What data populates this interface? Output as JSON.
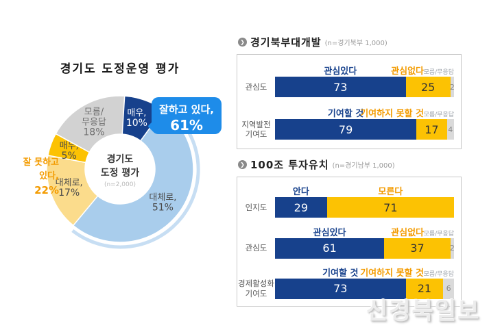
{
  "watermark": "신경북일보",
  "chart_data": [
    {
      "type": "donut",
      "title": "경기도 도정운영 평가",
      "center": {
        "line1": "경기도",
        "line2": "도정 평가",
        "note": "(n=2,000)"
      },
      "slices": [
        {
          "label_lines": [
            "매우,",
            "10%"
          ],
          "value": 10,
          "color": "#17418c",
          "text_color": "#ffffff"
        },
        {
          "label_lines": [
            "대체로,",
            "51%"
          ],
          "value": 51,
          "color": "#a9cdec",
          "text_color": "#4a4a4a",
          "ring": true
        },
        {
          "label_lines": [
            "대체로,",
            "17%"
          ],
          "value": 17,
          "color": "#fbdc8c",
          "text_color": "#4a4a4a"
        },
        {
          "label_lines": [
            "매우,",
            "5%"
          ],
          "value": 5,
          "color": "#fcc203",
          "text_color": "#4a4a4a"
        },
        {
          "label_lines": [
            "모름/",
            "무응답",
            "18%"
          ],
          "value": 18,
          "color": "#d2d2d2",
          "text_color": "#6f6f6f"
        }
      ],
      "callout_positive": {
        "line1": "잘하고 있다,",
        "line2": "61%",
        "color": "#1e8ce9"
      },
      "callout_negative": {
        "line1": "잘 못하고",
        "line2": "있다,",
        "line3": "22%",
        "color": "#f39b00"
      }
    },
    {
      "type": "stacked-bar",
      "title": "경기북부대개발",
      "note": "(n=경기북부 1,000)",
      "colors": {
        "positive": "#17418c",
        "negative": "#fcc203",
        "dontknow": "#dadada"
      },
      "rows": [
        {
          "category": "관심도",
          "pos_label": "관심있다",
          "neg_label": "관심없다",
          "dk_label": "모름/무응답",
          "values": [
            73,
            25,
            2
          ]
        },
        {
          "category": "지역발전\n기여도",
          "pos_label": "기여할 것",
          "neg_label": "기여하지 못할 것",
          "dk_label": "모름/무응답",
          "values": [
            79,
            17,
            4
          ]
        }
      ]
    },
    {
      "type": "stacked-bar",
      "title": "100조 투자유치",
      "note": "(n=경기남부 1,000)",
      "colors": {
        "positive": "#17418c",
        "negative": "#fcc203",
        "dontknow": "#dadada"
      },
      "rows": [
        {
          "category": "인지도",
          "pos_label": "안다",
          "neg_label": "모른다",
          "dk_label": "",
          "values": [
            29,
            71,
            0
          ]
        },
        {
          "category": "관심도",
          "pos_label": "관심있다",
          "neg_label": "관심없다",
          "dk_label": "모름/무응답",
          "values": [
            61,
            37,
            2
          ]
        },
        {
          "category": "경제활성화\n기여도",
          "pos_label": "기여할 것",
          "neg_label": "기여하지 못할 것",
          "dk_label": "모름/무응답",
          "values": [
            73,
            21,
            6
          ]
        }
      ]
    }
  ]
}
